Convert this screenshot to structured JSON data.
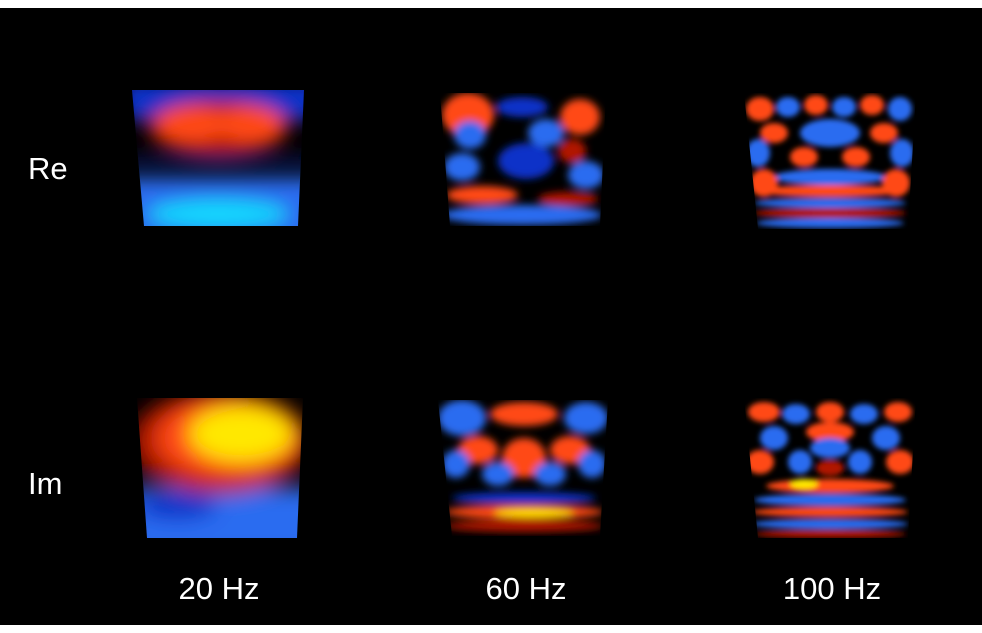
{
  "figure": {
    "row_labels": [
      "Re",
      "Im"
    ],
    "column_labels": [
      "20 Hz",
      "60 Hz",
      "100 Hz"
    ],
    "colors": {
      "background": "#000000",
      "label": "#ffffff",
      "positive_low": "#b01800",
      "positive_mid": "#ff4a12",
      "positive_high": "#ffe800",
      "negative_low": "#1030c8",
      "negative_mid": "#2a6cf0",
      "negative_high": "#10d8ff"
    },
    "panels": [
      {
        "row": "Re",
        "column": "20 Hz",
        "pattern": "low-frequency: red lobe top, cyan/blue bottom"
      },
      {
        "row": "Re",
        "column": "60 Hz",
        "pattern": "mid-frequency red/blue blobs"
      },
      {
        "row": "Re",
        "column": "100 Hz",
        "pattern": "high-frequency red/blue rings"
      },
      {
        "row": "Im",
        "column": "20 Hz",
        "pattern": "low-frequency: yellow/red lobe top, blue bottom"
      },
      {
        "row": "Im",
        "column": "60 Hz",
        "pattern": "mid-frequency red/blue blobs"
      },
      {
        "row": "Im",
        "column": "100 Hz",
        "pattern": "high-frequency red/blue rings"
      }
    ]
  }
}
